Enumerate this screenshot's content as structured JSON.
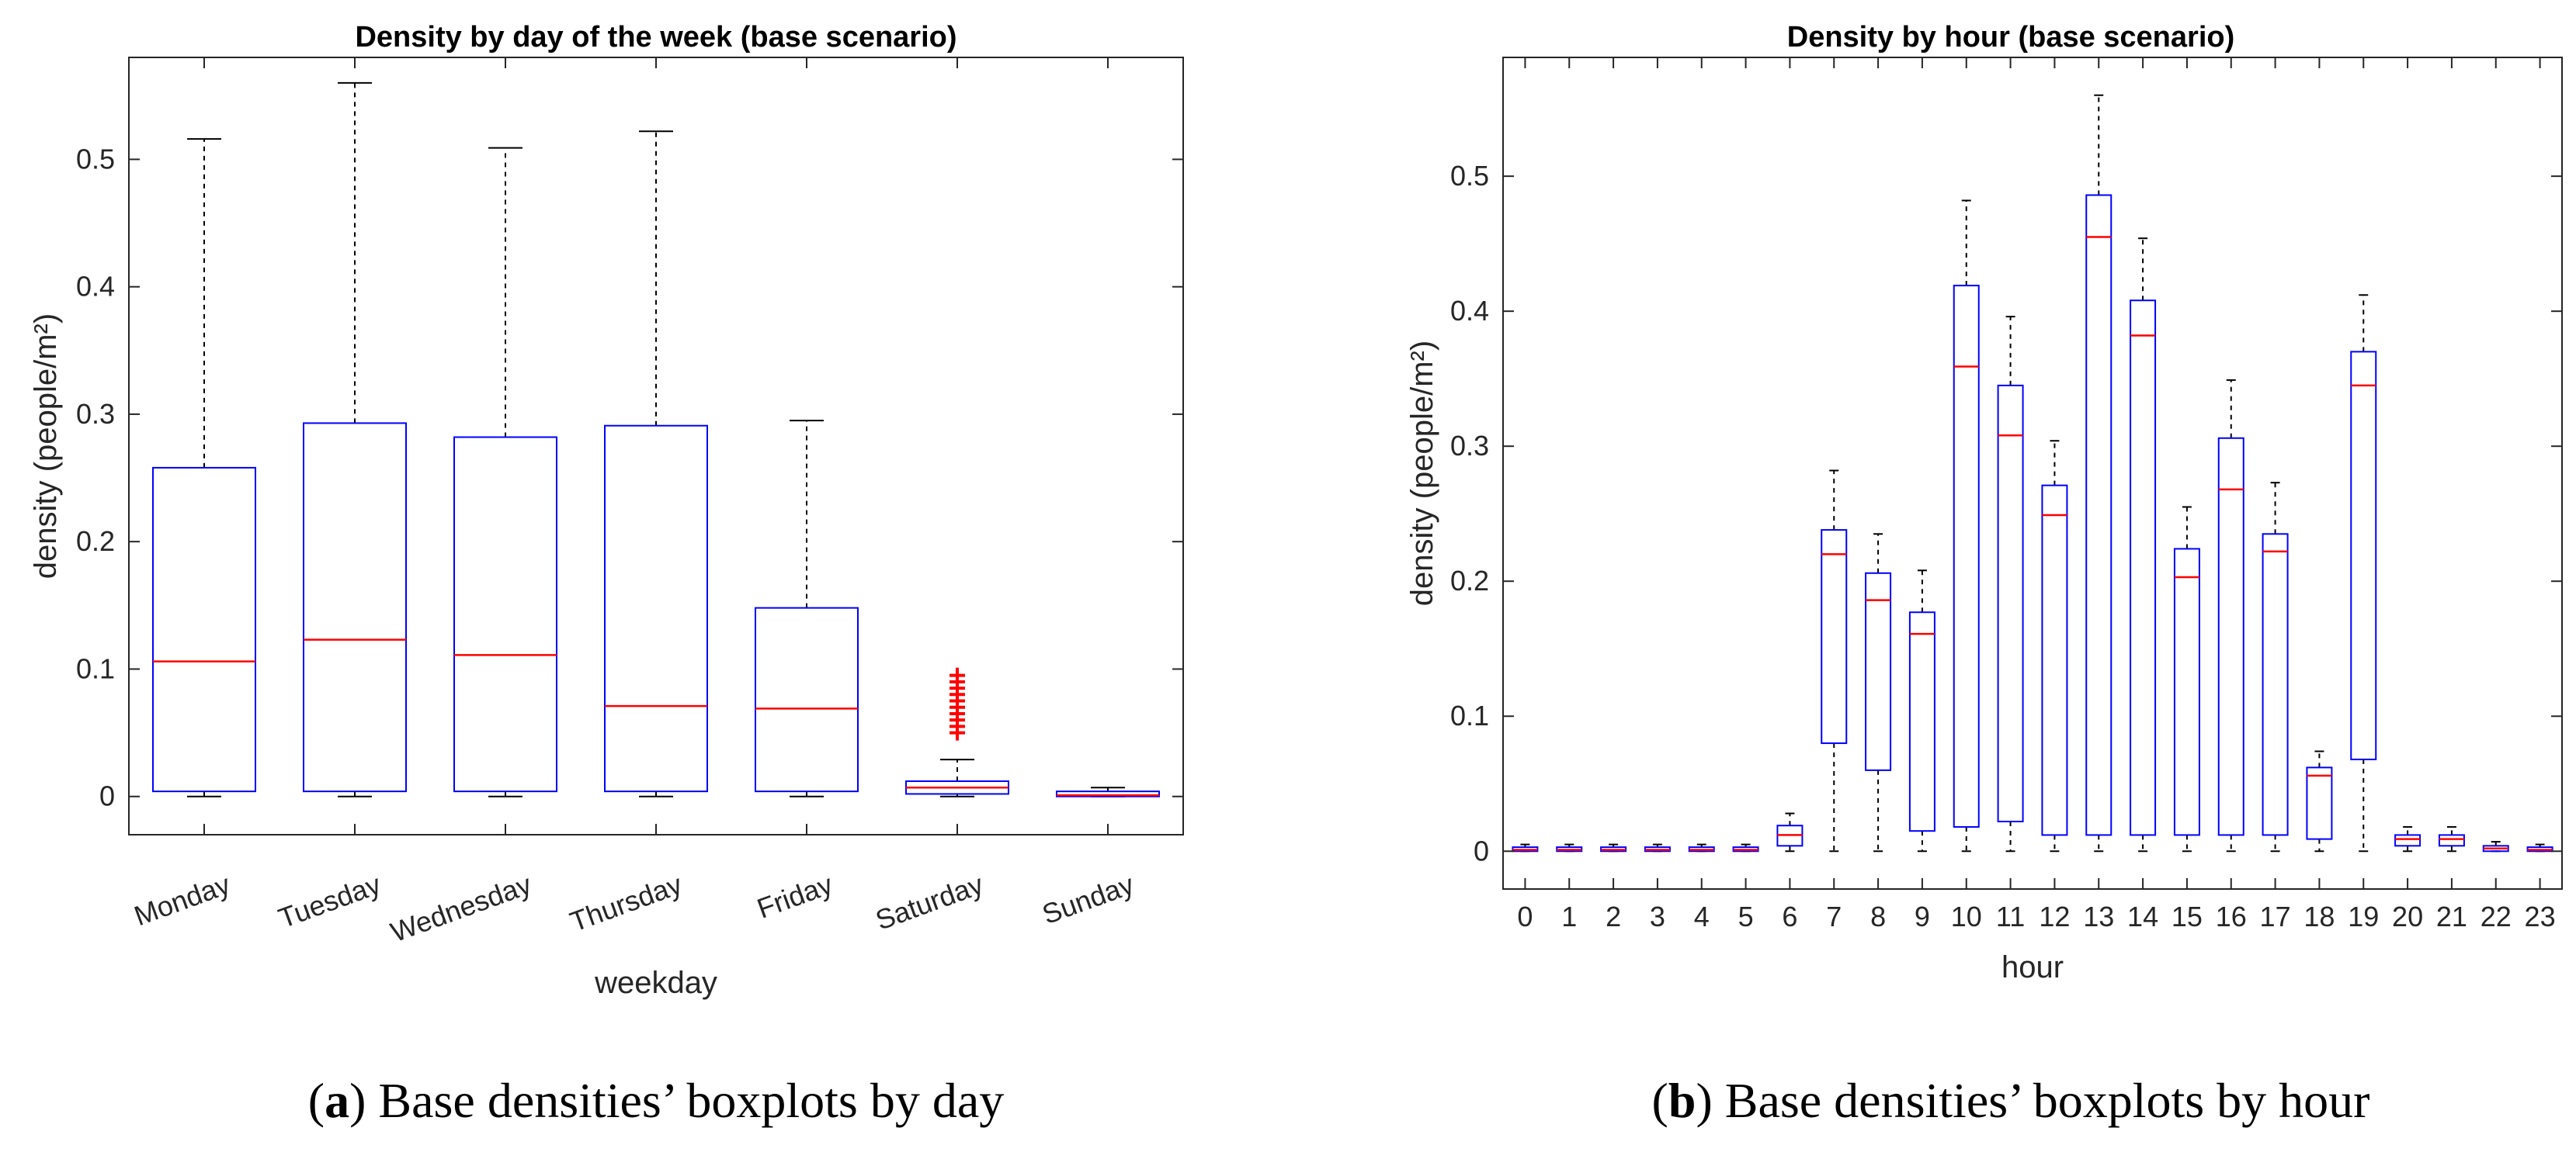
{
  "chart_data": [
    {
      "type": "boxplot",
      "title": "Density by day of the week (base scenario)",
      "xlabel": "weekday",
      "ylabel": "density (people/m²)",
      "ylim": [
        -0.03,
        0.58
      ],
      "yticks": [
        0,
        0.1,
        0.2,
        0.3,
        0.4,
        0.5
      ],
      "categories": [
        "Monday",
        "Tuesday",
        "Wednesday",
        "Thursday",
        "Friday",
        "Saturday",
        "Sunday"
      ],
      "boxes": [
        {
          "whisker_low": 0,
          "q1": 0.004,
          "median": 0.106,
          "q3": 0.258,
          "whisker_high": 0.516
        },
        {
          "whisker_low": 0,
          "q1": 0.004,
          "median": 0.123,
          "q3": 0.293,
          "whisker_high": 0.56
        },
        {
          "whisker_low": 0,
          "q1": 0.004,
          "median": 0.111,
          "q3": 0.282,
          "whisker_high": 0.509
        },
        {
          "whisker_low": 0,
          "q1": 0.004,
          "median": 0.071,
          "q3": 0.291,
          "whisker_high": 0.522
        },
        {
          "whisker_low": 0,
          "q1": 0.004,
          "median": 0.069,
          "q3": 0.148,
          "whisker_high": 0.295
        },
        {
          "whisker_low": 0,
          "q1": 0.002,
          "median": 0.007,
          "q3": 0.012,
          "whisker_high": 0.029,
          "outliers": [
            0.05,
            0.055,
            0.06,
            0.065,
            0.07,
            0.075,
            0.08,
            0.085,
            0.09,
            0.095
          ]
        },
        {
          "whisker_low": 0,
          "q1": 0,
          "median": 0.001,
          "q3": 0.004,
          "whisker_high": 0.007
        }
      ],
      "caption_label": "a",
      "caption": " Base densities’ boxplots by day"
    },
    {
      "type": "boxplot",
      "title": "Density by hour (base scenario)",
      "xlabel": "hour",
      "ylabel": "density (people/m²)",
      "ylim": [
        -0.028,
        0.588
      ],
      "yticks": [
        0,
        0.1,
        0.2,
        0.3,
        0.4,
        0.5
      ],
      "categories": [
        "0",
        "1",
        "2",
        "3",
        "4",
        "5",
        "6",
        "7",
        "8",
        "9",
        "10",
        "11",
        "12",
        "13",
        "14",
        "15",
        "16",
        "17",
        "18",
        "19",
        "20",
        "21",
        "22",
        "23"
      ],
      "boxes": [
        {
          "whisker_low": 0,
          "q1": 0,
          "median": 0.001,
          "q3": 0.003,
          "whisker_high": 0.005
        },
        {
          "whisker_low": 0,
          "q1": 0,
          "median": 0.001,
          "q3": 0.003,
          "whisker_high": 0.005
        },
        {
          "whisker_low": 0,
          "q1": 0,
          "median": 0.001,
          "q3": 0.003,
          "whisker_high": 0.005
        },
        {
          "whisker_low": 0,
          "q1": 0,
          "median": 0.001,
          "q3": 0.003,
          "whisker_high": 0.005
        },
        {
          "whisker_low": 0,
          "q1": 0,
          "median": 0.001,
          "q3": 0.003,
          "whisker_high": 0.005
        },
        {
          "whisker_low": 0,
          "q1": 0,
          "median": 0.001,
          "q3": 0.003,
          "whisker_high": 0.005
        },
        {
          "whisker_low": 0,
          "q1": 0.004,
          "median": 0.012,
          "q3": 0.019,
          "whisker_high": 0.028
        },
        {
          "whisker_low": 0,
          "q1": 0.08,
          "median": 0.22,
          "q3": 0.238,
          "whisker_high": 0.282
        },
        {
          "whisker_low": 0,
          "q1": 0.06,
          "median": 0.186,
          "q3": 0.206,
          "whisker_high": 0.235
        },
        {
          "whisker_low": 0,
          "q1": 0.015,
          "median": 0.161,
          "q3": 0.177,
          "whisker_high": 0.208
        },
        {
          "whisker_low": 0,
          "q1": 0.018,
          "median": 0.359,
          "q3": 0.419,
          "whisker_high": 0.482
        },
        {
          "whisker_low": 0,
          "q1": 0.022,
          "median": 0.308,
          "q3": 0.345,
          "whisker_high": 0.396
        },
        {
          "whisker_low": 0,
          "q1": 0.012,
          "median": 0.249,
          "q3": 0.271,
          "whisker_high": 0.304
        },
        {
          "whisker_low": 0,
          "q1": 0.012,
          "median": 0.455,
          "q3": 0.486,
          "whisker_high": 0.56
        },
        {
          "whisker_low": 0,
          "q1": 0.012,
          "median": 0.382,
          "q3": 0.408,
          "whisker_high": 0.454
        },
        {
          "whisker_low": 0,
          "q1": 0.012,
          "median": 0.203,
          "q3": 0.224,
          "whisker_high": 0.255
        },
        {
          "whisker_low": 0,
          "q1": 0.012,
          "median": 0.268,
          "q3": 0.306,
          "whisker_high": 0.349
        },
        {
          "whisker_low": 0,
          "q1": 0.012,
          "median": 0.222,
          "q3": 0.235,
          "whisker_high": 0.273
        },
        {
          "whisker_low": 0,
          "q1": 0.009,
          "median": 0.056,
          "q3": 0.062,
          "whisker_high": 0.074
        },
        {
          "whisker_low": 0,
          "q1": 0.068,
          "median": 0.345,
          "q3": 0.37,
          "whisker_high": 0.412
        },
        {
          "whisker_low": 0,
          "q1": 0.004,
          "median": 0.009,
          "q3": 0.012,
          "whisker_high": 0.018
        },
        {
          "whisker_low": 0,
          "q1": 0.004,
          "median": 0.009,
          "q3": 0.012,
          "whisker_high": 0.018
        },
        {
          "whisker_low": 0,
          "q1": 0,
          "median": 0.002,
          "q3": 0.004,
          "whisker_high": 0.007
        },
        {
          "whisker_low": 0,
          "q1": 0,
          "median": 0.001,
          "q3": 0.003,
          "whisker_high": 0.005
        }
      ],
      "caption_label": "b",
      "caption": " Base densities’ boxplots by hour"
    }
  ],
  "colors": {
    "box": "#0000ff",
    "median": "#ff0000",
    "whisker": "#000000",
    "outlier": "#ff0000",
    "axis": "#262626"
  }
}
